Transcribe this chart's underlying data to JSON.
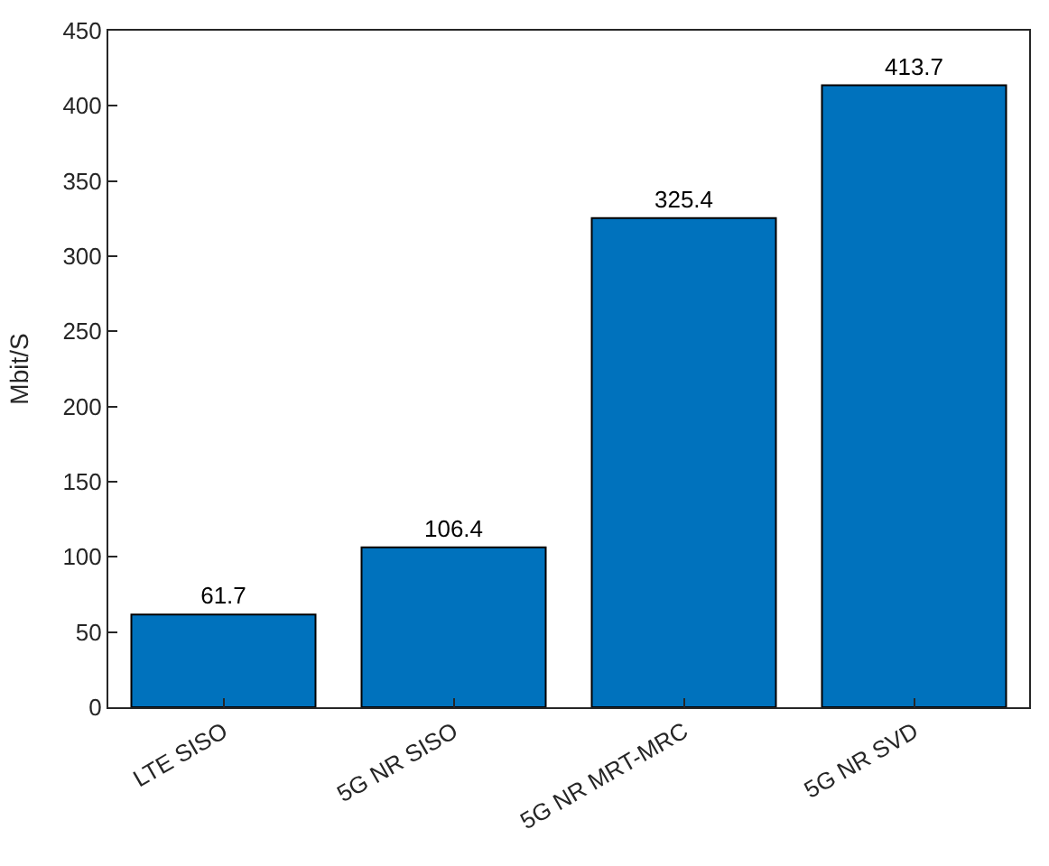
{
  "chart_data": {
    "type": "bar",
    "ylabel": "Mbit/S",
    "categories": [
      "LTE SISO",
      "5G NR SISO",
      "5G NR MRT-MRC",
      "5G NR SVD"
    ],
    "values": [
      61.7,
      106.4,
      325.4,
      413.7
    ],
    "color": "#0072bd",
    "ylim": [
      0,
      450
    ],
    "yticks": [
      0,
      50,
      100,
      150,
      200,
      250,
      300,
      350,
      400,
      450
    ],
    "data_labels": true
  }
}
